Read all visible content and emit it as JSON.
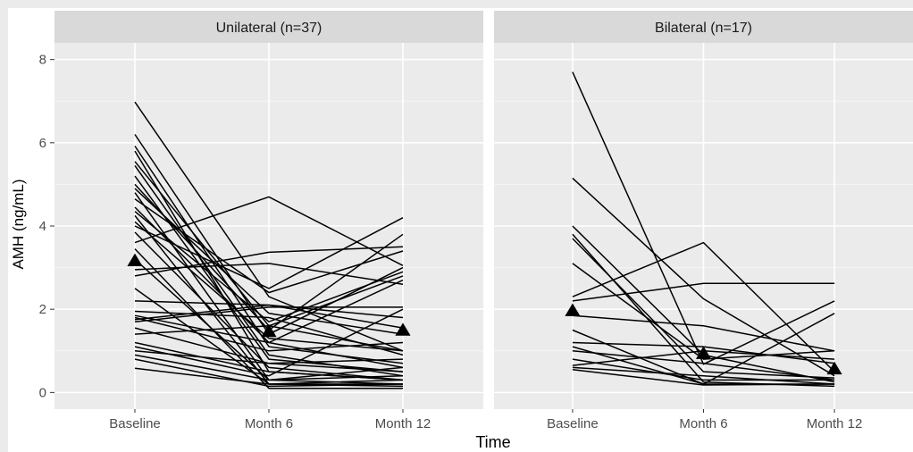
{
  "chart_data": {
    "type": "line",
    "xlabel": "Time",
    "ylabel": "AMH (ng/mL)",
    "categories": [
      "Baseline",
      "Month 6",
      "Month 12"
    ],
    "ylim": [
      -0.4,
      8.4
    ],
    "yticks": [
      0,
      2,
      4,
      6,
      8
    ],
    "grid": true,
    "legend": "none",
    "colors": {
      "panel_bg": "#ebebeb",
      "strip_bg": "#d9d9d9",
      "grid": "#ffffff",
      "line": "#000000",
      "outer_bg": "#ebebeb"
    },
    "panels": [
      {
        "title": "Unilateral (n=37)",
        "mean": [
          3.15,
          1.45,
          1.48
        ],
        "series": [
          [
            6.98,
            2.3,
            1.0
          ],
          [
            6.2,
            1.4,
            3.0
          ],
          [
            5.92,
            1.1,
            0.7
          ],
          [
            5.8,
            0.5,
            0.3
          ],
          [
            5.55,
            1.6,
            2.8
          ],
          [
            5.45,
            0.9,
            0.4
          ],
          [
            5.2,
            0.8,
            0.5
          ],
          [
            5.0,
            1.5,
            3.8
          ],
          [
            4.9,
            1.9,
            1.4
          ],
          [
            4.8,
            0.3,
            0.2
          ],
          [
            4.65,
            2.4,
            3.4
          ],
          [
            4.45,
            1.2,
            0.6
          ],
          [
            4.35,
            1.7,
            2.9
          ],
          [
            4.25,
            0.2,
            0.2
          ],
          [
            4.1,
            1.3,
            1.0
          ],
          [
            4.0,
            2.5,
            4.2
          ],
          [
            3.85,
            0.6,
            0.3
          ],
          [
            3.6,
            4.7,
            3.05
          ],
          [
            3.45,
            0.1,
            0.1
          ],
          [
            3.2,
            0.3,
            0.4
          ],
          [
            2.95,
            3.1,
            2.6
          ],
          [
            2.8,
            3.37,
            3.5
          ],
          [
            2.5,
            0.2,
            0.15
          ],
          [
            2.2,
            2.1,
            1.8
          ],
          [
            1.95,
            1.8,
            0.9
          ],
          [
            1.8,
            1.0,
            1.2
          ],
          [
            1.75,
            2.1,
            1.55
          ],
          [
            1.7,
            2.05,
            2.05
          ],
          [
            1.55,
            0.7,
            0.5
          ],
          [
            1.4,
            1.6,
            1.0
          ],
          [
            1.2,
            0.5,
            0.3
          ],
          [
            1.1,
            0.4,
            2.0
          ],
          [
            1.0,
            0.7,
            0.8
          ],
          [
            0.9,
            0.3,
            0.6
          ],
          [
            0.8,
            0.15,
            0.2
          ],
          [
            0.58,
            0.2,
            0.3
          ],
          [
            1.85,
            1.2,
            2.7
          ]
        ]
      },
      {
        "title": "Bilateral (n=17)",
        "mean": [
          1.95,
          0.92,
          0.55
        ],
        "series": [
          [
            7.7,
            0.68,
            2.2
          ],
          [
            5.15,
            2.25,
            0.4
          ],
          [
            4.0,
            0.9,
            0.25
          ],
          [
            3.8,
            0.25,
            0.15
          ],
          [
            3.7,
            0.5,
            0.35
          ],
          [
            3.1,
            0.8,
            1.0
          ],
          [
            2.3,
            3.6,
            0.5
          ],
          [
            2.2,
            2.62,
            2.62
          ],
          [
            1.85,
            1.6,
            1.0
          ],
          [
            1.5,
            0.2,
            0.2
          ],
          [
            1.2,
            1.1,
            0.7
          ],
          [
            1.1,
            0.2,
            1.9
          ],
          [
            1.0,
            0.7,
            0.3
          ],
          [
            0.8,
            0.3,
            0.3
          ],
          [
            0.65,
            1.0,
            0.8
          ],
          [
            0.6,
            0.4,
            0.2
          ],
          [
            0.55,
            0.18,
            0.2
          ]
        ]
      }
    ]
  }
}
